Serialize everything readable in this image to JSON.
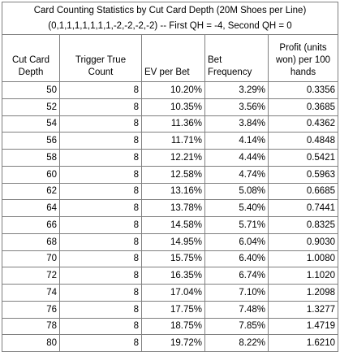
{
  "title_line1": "Card Counting Statistics by Cut Card Depth (20M Shoes per Line)",
  "title_line2": "(0,1,1,1,1,1,1,1,-2,-2,-2,-2) -- First QH = -4, Second QH = 0",
  "headers": {
    "cut_card_depth": "Cut Card Depth",
    "trigger_true_count": "Trigger True Count",
    "ev_per_bet": "EV per Bet",
    "bet_frequency": "Bet Frequency",
    "profit": "Profit (units won) per 100 hands"
  },
  "rows": [
    {
      "depth": "50",
      "ttc": "8",
      "ev": "10.20%",
      "freq": "3.29%",
      "profit": "0.3356"
    },
    {
      "depth": "52",
      "ttc": "8",
      "ev": "10.35%",
      "freq": "3.56%",
      "profit": "0.3685"
    },
    {
      "depth": "54",
      "ttc": "8",
      "ev": "11.36%",
      "freq": "3.84%",
      "profit": "0.4362"
    },
    {
      "depth": "56",
      "ttc": "8",
      "ev": "11.71%",
      "freq": "4.14%",
      "profit": "0.4848"
    },
    {
      "depth": "58",
      "ttc": "8",
      "ev": "12.21%",
      "freq": "4.44%",
      "profit": "0.5421"
    },
    {
      "depth": "60",
      "ttc": "8",
      "ev": "12.58%",
      "freq": "4.74%",
      "profit": "0.5963"
    },
    {
      "depth": "62",
      "ttc": "8",
      "ev": "13.16%",
      "freq": "5.08%",
      "profit": "0.6685"
    },
    {
      "depth": "64",
      "ttc": "8",
      "ev": "13.78%",
      "freq": "5.40%",
      "profit": "0.7441"
    },
    {
      "depth": "66",
      "ttc": "8",
      "ev": "14.58%",
      "freq": "5.71%",
      "profit": "0.8325"
    },
    {
      "depth": "68",
      "ttc": "8",
      "ev": "14.95%",
      "freq": "6.04%",
      "profit": "0.9030"
    },
    {
      "depth": "70",
      "ttc": "8",
      "ev": "15.75%",
      "freq": "6.40%",
      "profit": "1.0080"
    },
    {
      "depth": "72",
      "ttc": "8",
      "ev": "16.35%",
      "freq": "6.74%",
      "profit": "1.1020"
    },
    {
      "depth": "74",
      "ttc": "8",
      "ev": "17.04%",
      "freq": "7.10%",
      "profit": "1.2098"
    },
    {
      "depth": "76",
      "ttc": "8",
      "ev": "17.75%",
      "freq": "7.48%",
      "profit": "1.3277"
    },
    {
      "depth": "78",
      "ttc": "8",
      "ev": "18.75%",
      "freq": "7.85%",
      "profit": "1.4719"
    },
    {
      "depth": "80",
      "ttc": "8",
      "ev": "19.72%",
      "freq": "8.22%",
      "profit": "1.6210"
    }
  ]
}
